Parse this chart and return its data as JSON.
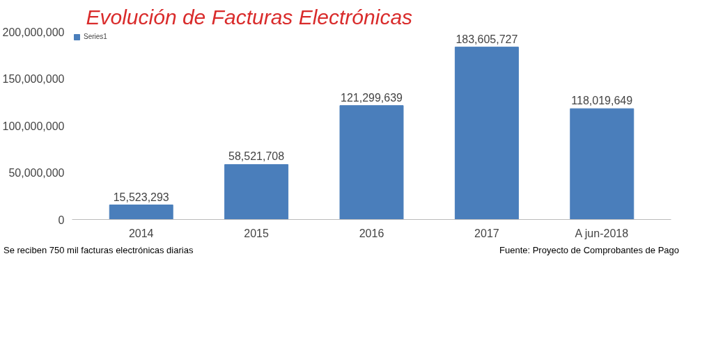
{
  "chart_data": {
    "type": "bar",
    "title": "Evolución de Facturas Electrónicas",
    "categories": [
      "2014",
      "2015",
      "2016",
      "2017",
      "A jun-2018"
    ],
    "series": [
      {
        "name": "Series1",
        "color": "#4a7ebb",
        "values": [
          15523293,
          58521708,
          121299639,
          183605727,
          118019649
        ],
        "value_labels": [
          "15,523,293",
          "58,521,708",
          "121,299,639",
          "183,605,727",
          "118,019,649"
        ]
      }
    ],
    "ylim": [
      0,
      200000000
    ],
    "yticks": [
      0,
      {
        "value": 50000000,
        "label": "50,000,000"
      },
      {
        "value": 100000000,
        "label": "100,000,000"
      },
      {
        "value": 150000000,
        "label": "150,000,000"
      },
      {
        "value": 200000000,
        "label": "200,000,000"
      }
    ],
    "grid": false,
    "legend": "top left",
    "annotations": [
      "Se reciben 750 mil facturas electrónicas diarias",
      "Fuente: Proyecto de Comprobantes de Pago"
    ]
  }
}
